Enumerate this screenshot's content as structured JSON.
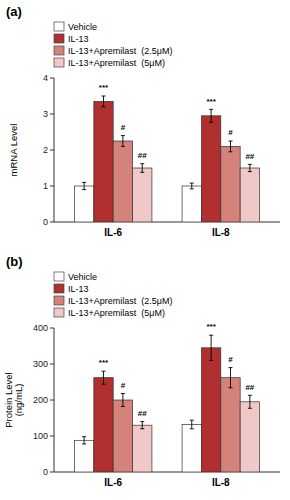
{
  "chart_data": [
    {
      "type": "bar",
      "title": "(a)",
      "y_label": "mRNA Level",
      "categories": [
        "IL-6",
        "IL-8"
      ],
      "series": [
        {
          "name": "Vehicle",
          "color": "#ffffff",
          "values": [
            1.0,
            1.0
          ],
          "errors": [
            0.1,
            0.08
          ]
        },
        {
          "name": "IL-13",
          "color": "#b03030",
          "values": [
            3.35,
            2.95
          ],
          "errors": [
            0.15,
            0.18
          ],
          "annotations": [
            "***",
            "***"
          ]
        },
        {
          "name": "IL-13+Apremilast  (2.5μM)",
          "color": "#d4827a",
          "values": [
            2.25,
            2.1
          ],
          "errors": [
            0.15,
            0.15
          ],
          "annotations": [
            "#",
            "#"
          ]
        },
        {
          "name": "IL-13+Apremilast  (5μM)",
          "color": "#f0c8c8",
          "values": [
            1.5,
            1.5
          ],
          "errors": [
            0.12,
            0.1
          ],
          "annotations": [
            "##",
            "##"
          ]
        }
      ],
      "ylim": [
        0,
        4
      ],
      "yticks": [
        0,
        1,
        2,
        3,
        4
      ],
      "grid": false,
      "legend": "upper left"
    },
    {
      "type": "bar",
      "title": "(b)",
      "y_label": "Protein Level\n(ng/mL)",
      "categories": [
        "IL-6",
        "IL-8"
      ],
      "series": [
        {
          "name": "Vehicle",
          "color": "#ffffff",
          "values": [
            88,
            132
          ],
          "errors": [
            10,
            12
          ]
        },
        {
          "name": "IL-13",
          "color": "#b03030",
          "values": [
            262,
            345
          ],
          "errors": [
            18,
            35
          ],
          "annotations": [
            "***",
            "***"
          ]
        },
        {
          "name": "IL-13+Apremilast  (2.5μM)",
          "color": "#d4827a",
          "values": [
            200,
            262
          ],
          "errors": [
            18,
            28
          ],
          "annotations": [
            "#",
            "#"
          ]
        },
        {
          "name": "IL-13+Apremilast  (5μM)",
          "color": "#f0c8c8",
          "values": [
            130,
            195
          ],
          "errors": [
            10,
            18
          ],
          "annotations": [
            "##",
            "##"
          ]
        }
      ],
      "ylim": [
        0,
        400
      ],
      "yticks": [
        0,
        100,
        200,
        300,
        400
      ],
      "grid": false,
      "legend": "upper left"
    }
  ]
}
